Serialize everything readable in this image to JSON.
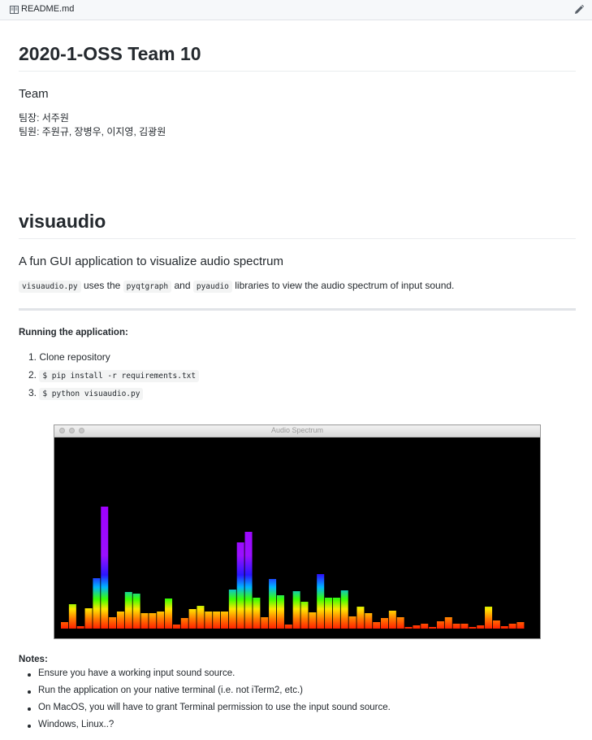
{
  "file_header": {
    "filename": "README.md"
  },
  "title1": "2020-1-OSS Team 10",
  "team": {
    "heading": "Team",
    "leader": "팀장: 서주원",
    "members": "팀원: 주원규, 장병우, 이지영, 김광원"
  },
  "title2": "visuaudio",
  "subtitle": "A fun GUI application to visualize audio spectrum",
  "description": {
    "code1": "visuaudio.py",
    "t1": " uses the ",
    "code2": "pyqtgraph",
    "t2": " and ",
    "code3": "pyaudio",
    "t3": " libraries to view the audio spectrum of input sound."
  },
  "running": {
    "heading": "Running the application:",
    "steps": [
      {
        "num": "1.",
        "text": "Clone repository"
      },
      {
        "num": "2.",
        "code": "$ pip install -r requirements.txt"
      },
      {
        "num": "3.",
        "code": "$ python visuaudio.py"
      }
    ]
  },
  "spectrum_window": {
    "title": "Audio Spectrum"
  },
  "chart_data": {
    "type": "bar",
    "ylim": [
      0,
      150
    ],
    "values": [
      8,
      30,
      3,
      25,
      62,
      150,
      14,
      21,
      45,
      43,
      19,
      19,
      21,
      37,
      5,
      13,
      24,
      28,
      21,
      21,
      21,
      48,
      106,
      119,
      38,
      14,
      61,
      41,
      5,
      46,
      33,
      20,
      67,
      38,
      38,
      47,
      15,
      27,
      19,
      8,
      13,
      22,
      14,
      2,
      4,
      6,
      2,
      9,
      14,
      6,
      6,
      2,
      4,
      27,
      10,
      3,
      6,
      8
    ]
  },
  "notes": {
    "heading": "Notes:",
    "items": [
      "Ensure you have a working input sound source.",
      "Run the application on your native terminal (i.e. not iTerm2, etc.)",
      "On MacOS, you will have to grant Terminal permission to use the input sound source.",
      "Windows, Linux..?"
    ]
  }
}
